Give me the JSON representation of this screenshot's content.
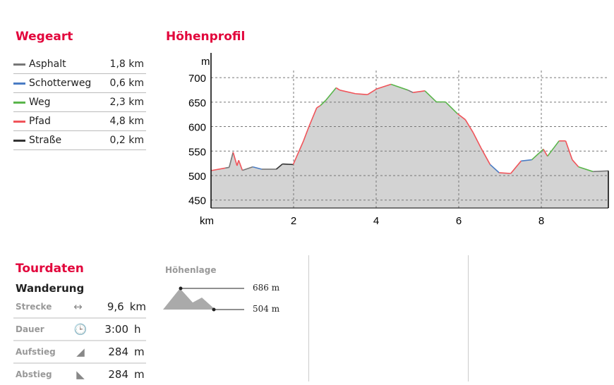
{
  "wegeart": {
    "title": "Wegeart",
    "items": [
      {
        "label": "Asphalt",
        "value": "1,8 km",
        "color": "#777777"
      },
      {
        "label": "Schotterweg",
        "value": "0,6 km",
        "color": "#4a7cc4"
      },
      {
        "label": "Weg",
        "value": "2,3 km",
        "color": "#5ab54b"
      },
      {
        "label": "Pfad",
        "value": "4,8 km",
        "color": "#f0545a"
      },
      {
        "label": "Straße",
        "value": "0,2 km",
        "color": "#333333"
      }
    ]
  },
  "chart_data": {
    "type": "area",
    "title": "Höhenprofil",
    "ylabel": "m",
    "xlabel": "km",
    "ylim": [
      440,
      710
    ],
    "xlim": [
      0,
      9.63
    ],
    "yticks": [
      450,
      500,
      550,
      600,
      650,
      700
    ],
    "xticks": [
      2,
      4,
      6,
      8
    ],
    "grid": true,
    "x": [
      0.03,
      0.345,
      0.44,
      0.535,
      0.63,
      0.67,
      0.76,
      1.01,
      1.23,
      1.58,
      1.73,
      1.99,
      2.24,
      2.37,
      2.56,
      2.65,
      2.78,
      3.03,
      3.12,
      3.5,
      3.79,
      4.01,
      4.36,
      4.77,
      4.89,
      5.18,
      5.46,
      5.68,
      5.97,
      6.16,
      6.35,
      6.54,
      6.76,
      6.98,
      7.26,
      7.51,
      7.77,
      8.05,
      8.15,
      8.43,
      8.59,
      8.75,
      8.9,
      9.25,
      9.63
    ],
    "y": [
      510.6,
      515.4,
      516.8,
      547.7,
      520.2,
      531.3,
      510.6,
      517.8,
      513,
      513,
      523.6,
      522.6,
      570.8,
      599.7,
      638.3,
      643.1,
      653.7,
      679.3,
      674.5,
      667.2,
      665.3,
      676.9,
      686.5,
      674.5,
      669.6,
      673,
      650.4,
      650.4,
      626.3,
      614.2,
      587.7,
      556.4,
      522.6,
      505.8,
      504.3,
      529.8,
      532.3,
      554,
      539.5,
      570.8,
      570.8,
      532.3,
      517.8,
      508.2,
      509.6
    ],
    "surface": [
      3,
      0,
      0,
      3,
      3,
      3,
      0,
      1,
      0,
      4,
      4,
      3,
      3,
      3,
      3,
      2,
      2,
      3,
      3,
      3,
      3,
      3,
      2,
      0,
      3,
      2,
      2,
      2,
      3,
      3,
      3,
      3,
      1,
      3,
      3,
      1,
      2,
      3,
      2,
      3,
      3,
      3,
      2,
      0
    ]
  },
  "tourdaten": {
    "title": "Tourdaten",
    "type": "Wanderung",
    "rows": [
      {
        "label": "Strecke",
        "icon": "↔",
        "value": "9,6",
        "unit": "km"
      },
      {
        "label": "Dauer",
        "icon": "🕒",
        "value": "3:00",
        "unit": "h"
      },
      {
        "label": "Aufstieg",
        "icon": "◢",
        "value": "284",
        "unit": "m"
      },
      {
        "label": "Abstieg",
        "icon": "◣",
        "value": "284",
        "unit": "m"
      }
    ]
  },
  "hoehenlage": {
    "title": "Höhenlage",
    "max": "686 m",
    "min": "504 m"
  }
}
